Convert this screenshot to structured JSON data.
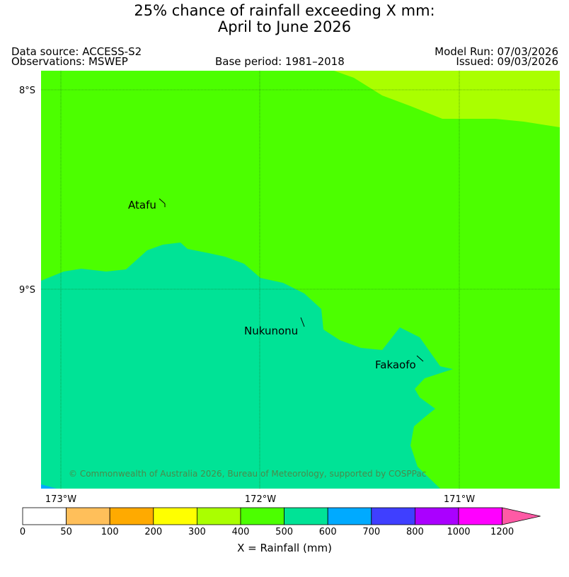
{
  "title": {
    "line1": "25% chance of rainfall exceeding X mm:",
    "line2": "April to June 2026"
  },
  "header": {
    "data_source": "Data source: ACCESS-S2",
    "observations": "Observations: MSWEP",
    "base_period": "Base period: 1981–2018",
    "model_run": "Model Run: 07/03/2026",
    "issued": "Issued: 09/03/2026"
  },
  "map": {
    "lat_labels": [
      "8°S",
      "9°S"
    ],
    "lon_labels": [
      "173°W",
      "172°W",
      "171°W"
    ],
    "places": [
      "Atafu",
      "Nukunonu",
      "Fakaofo"
    ],
    "copyright": "© Commonwealth of Australia 2026, Bureau of Meteorology, supported by COSPPac"
  },
  "colorbar": {
    "ticks": [
      "0",
      "50",
      "100",
      "200",
      "300",
      "400",
      "500",
      "600",
      "700",
      "800",
      "1000",
      "1200"
    ],
    "colors": [
      "#ffffff",
      "#ffbf5a",
      "#ffaa00",
      "#ffff00",
      "#aaff00",
      "#4cff00",
      "#00e396",
      "#00aaff",
      "#3f3fff",
      "#aa00ff",
      "#ff00ff",
      "#ff5aa5"
    ],
    "title": "X = Rainfall (mm)"
  }
}
